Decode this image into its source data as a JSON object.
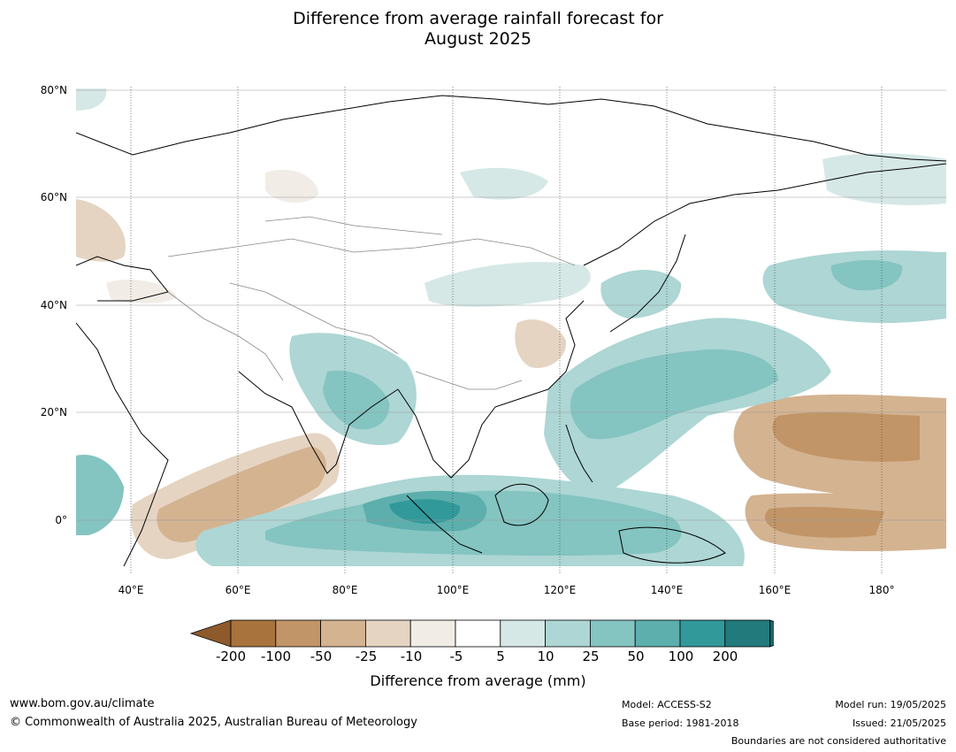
{
  "title_line1": "Difference from average rainfall forecast for",
  "title_line2": "August 2025",
  "lat_labels": [
    "80°N",
    "60°N",
    "40°N",
    "20°N",
    "0°"
  ],
  "lon_labels": [
    "40°E",
    "60°E",
    "80°E",
    "100°E",
    "120°E",
    "140°E",
    "160°E",
    "180°"
  ],
  "colorbar": {
    "title": "Difference from average (mm)",
    "labels": [
      "-200",
      "-100",
      "-50",
      "-25",
      "-10",
      "-5",
      "5",
      "10",
      "25",
      "50",
      "100",
      "200"
    ],
    "colors": [
      "#a8733d",
      "#c19567",
      "#d4b391",
      "#e5d4c2",
      "#f1ece6",
      "#ffffff",
      "#d5e8e6",
      "#add6d4",
      "#84c4c1",
      "#5cafad",
      "#32999a",
      "#227a7c"
    ],
    "low_arrow_color": "#8e5a2b",
    "high_arrow_color": "#1c6566"
  },
  "footer": {
    "website": "www.bom.gov.au/climate",
    "copyright": "© Commonwealth of Australia 2025, Australian Bureau of Meteorology",
    "model": "Model: ACCESS-S2",
    "base_period": "Base period: 1981-2018",
    "model_run": "Model run: 19/05/2025",
    "issued": "Issued: 21/05/2025",
    "disclaimer": "Boundaries are not considered authoritative"
  }
}
